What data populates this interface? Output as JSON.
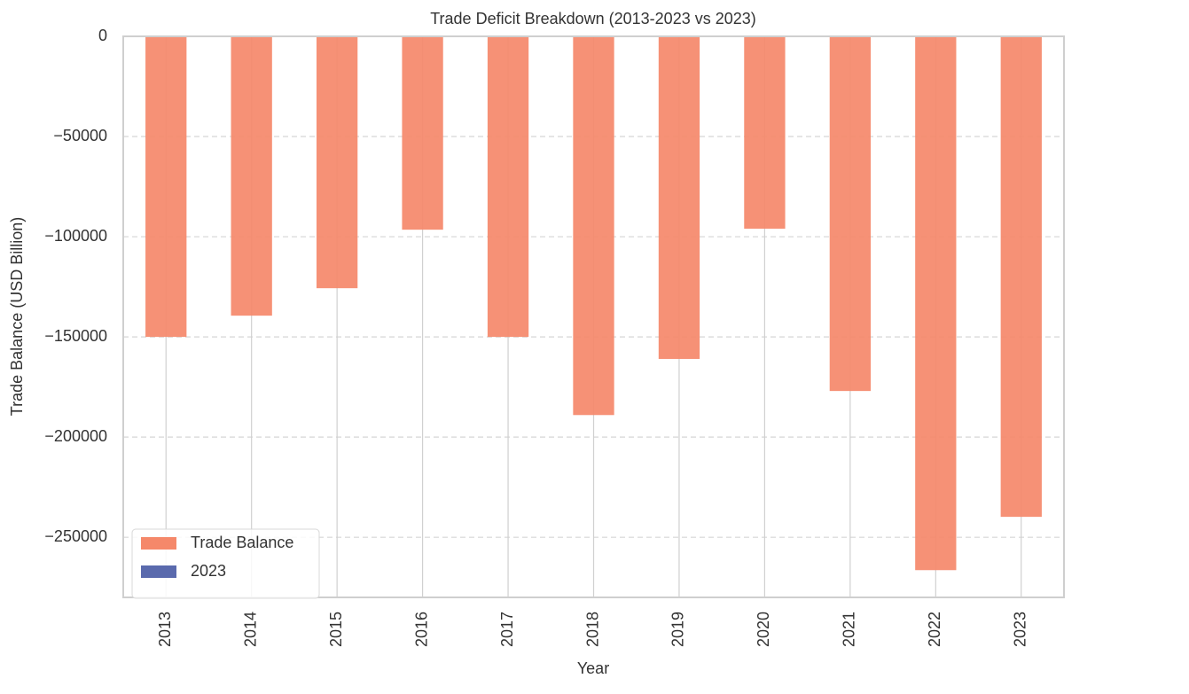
{
  "chart_data": {
    "type": "bar",
    "title": "Trade Deficit Breakdown (2013-2023 vs 2023)",
    "x_label": "Year",
    "y_label": "Trade Balance (USD Billion)",
    "categories": [
      "2013",
      "2014",
      "2015",
      "2016",
      "2017",
      "2018",
      "2019",
      "2020",
      "2021",
      "2022",
      "2023"
    ],
    "series": [
      {
        "name": "Trade Balance",
        "color": "#f5886a",
        "values": [
          -150000,
          -139400,
          -125700,
          -96500,
          -150000,
          -189000,
          -161000,
          -96000,
          -177000,
          -266400,
          -239800
        ]
      },
      {
        "name": "2023",
        "color": "#5a6aad",
        "values": [
          null,
          null,
          null,
          null,
          null,
          null,
          null,
          null,
          null,
          null,
          null
        ]
      }
    ],
    "ylim": [
      -280000,
      0
    ],
    "yticks": [
      0,
      {
        "value": -50000,
        "label": "−50000"
      },
      {
        "value": -100000,
        "label": "−100000"
      },
      {
        "value": -150000,
        "label": "−150000"
      },
      {
        "value": -200000,
        "label": "−200000"
      },
      {
        "value": -250000,
        "label": "−250000"
      }
    ],
    "grid": true,
    "legend": "lower left"
  }
}
